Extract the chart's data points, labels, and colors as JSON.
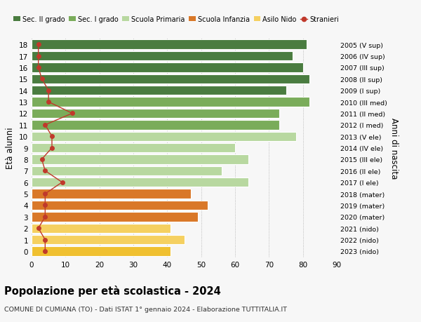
{
  "ages": [
    18,
    17,
    16,
    15,
    14,
    13,
    12,
    11,
    10,
    9,
    8,
    7,
    6,
    5,
    4,
    3,
    2,
    1,
    0
  ],
  "bar_values": [
    81,
    77,
    80,
    82,
    75,
    82,
    73,
    73,
    78,
    60,
    64,
    56,
    64,
    47,
    52,
    49,
    41,
    45,
    41
  ],
  "stranieri": [
    2,
    2,
    2,
    3,
    5,
    5,
    12,
    4,
    6,
    6,
    3,
    4,
    9,
    4,
    4,
    4,
    2,
    4,
    4
  ],
  "right_labels": [
    "2005 (V sup)",
    "2006 (IV sup)",
    "2007 (III sup)",
    "2008 (II sup)",
    "2009 (I sup)",
    "2010 (III med)",
    "2011 (II med)",
    "2012 (I med)",
    "2013 (V ele)",
    "2014 (IV ele)",
    "2015 (III ele)",
    "2016 (II ele)",
    "2017 (I ele)",
    "2018 (mater)",
    "2019 (mater)",
    "2020 (mater)",
    "2021 (nido)",
    "2022 (nido)",
    "2023 (nido)"
  ],
  "bar_colors": [
    "#4a7c40",
    "#4a7c40",
    "#4a7c40",
    "#4a7c40",
    "#4a7c40",
    "#7aac5a",
    "#7aac5a",
    "#7aac5a",
    "#b8d8a0",
    "#b8d8a0",
    "#b8d8a0",
    "#b8d8a0",
    "#b8d8a0",
    "#d97828",
    "#d97828",
    "#d97828",
    "#f5d060",
    "#f5d060",
    "#f0c030"
  ],
  "legend_labels": [
    "Sec. II grado",
    "Sec. I grado",
    "Scuola Primaria",
    "Scuola Infanzia",
    "Asilo Nido",
    "Stranieri"
  ],
  "legend_colors": [
    "#4a7c40",
    "#7aac5a",
    "#b8d8a0",
    "#d97828",
    "#f5d060",
    "#c0392b"
  ],
  "stranieri_color": "#c0392b",
  "ylabel": "Età alunni",
  "right_ylabel": "Anni di nascita",
  "title": "Popolazione per età scolastica - 2024",
  "subtitle": "COMUNE DI CUMIANA (TO) - Dati ISTAT 1° gennaio 2024 - Elaborazione TUTTITALIA.IT",
  "xlim": [
    0,
    90
  ],
  "background_color": "#f7f7f7",
  "bar_height": 0.82
}
